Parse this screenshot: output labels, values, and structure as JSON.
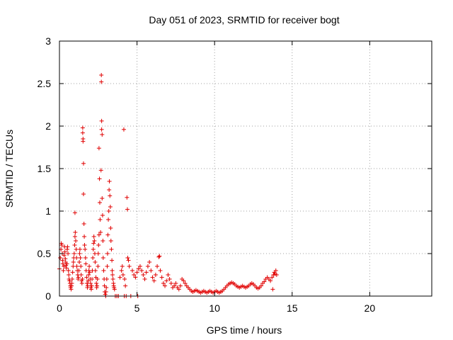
{
  "chart_data": {
    "type": "scatter",
    "title": "Day 051 of 2023, SRMTID for receiver bogt",
    "xlabel": "GPS time / hours",
    "ylabel": "SRMTID / TECUs",
    "xlim": [
      0,
      24
    ],
    "ylim": [
      0,
      3
    ],
    "xticks": [
      0,
      5,
      10,
      15,
      20
    ],
    "yticks": [
      0,
      0.5,
      1,
      1.5,
      2,
      2.5,
      3
    ],
    "xtick_labels": [
      "0",
      "5",
      "10",
      "15",
      "20"
    ],
    "ytick_labels": [
      "0",
      "0.5",
      "1",
      "1.5",
      "2",
      "2.5",
      "3"
    ],
    "grid": true,
    "marker": "+",
    "color": "#e00000",
    "series": [
      {
        "name": "SRMTID",
        "points": [
          [
            0.0,
            0.32
          ],
          [
            0.05,
            0.45
          ],
          [
            0.1,
            0.55
          ],
          [
            0.12,
            0.62
          ],
          [
            0.15,
            0.6
          ],
          [
            0.18,
            0.5
          ],
          [
            0.2,
            0.42
          ],
          [
            0.22,
            0.38
          ],
          [
            0.25,
            0.3
          ],
          [
            0.28,
            0.35
          ],
          [
            0.3,
            0.48
          ],
          [
            0.33,
            0.58
          ],
          [
            0.35,
            0.52
          ],
          [
            0.38,
            0.44
          ],
          [
            0.4,
            0.4
          ],
          [
            0.42,
            0.36
          ],
          [
            0.45,
            0.33
          ],
          [
            0.48,
            0.38
          ],
          [
            0.5,
            0.55
          ],
          [
            0.52,
            0.58
          ],
          [
            0.55,
            0.5
          ],
          [
            0.58,
            0.3
          ],
          [
            0.6,
            0.25
          ],
          [
            0.62,
            0.2
          ],
          [
            0.65,
            0.18
          ],
          [
            0.68,
            0.15
          ],
          [
            0.7,
            0.12
          ],
          [
            0.72,
            0.1
          ],
          [
            0.75,
            0.08
          ],
          [
            0.78,
            0.12
          ],
          [
            0.8,
            0.15
          ],
          [
            0.82,
            0.2
          ],
          [
            0.85,
            0.28
          ],
          [
            0.88,
            0.35
          ],
          [
            0.9,
            0.4
          ],
          [
            0.92,
            0.45
          ],
          [
            0.95,
            0.5
          ],
          [
            0.98,
            0.6
          ],
          [
            1.0,
            0.7
          ],
          [
            1.02,
            0.75
          ],
          [
            1.05,
            0.65
          ],
          [
            1.08,
            0.55
          ],
          [
            1.1,
            0.45
          ],
          [
            1.0,
            0.98
          ],
          [
            1.12,
            0.35
          ],
          [
            1.15,
            0.3
          ],
          [
            1.18,
            0.25
          ],
          [
            1.2,
            0.2
          ],
          [
            1.22,
            0.22
          ],
          [
            1.25,
            0.3
          ],
          [
            1.28,
            0.4
          ],
          [
            1.3,
            0.5
          ],
          [
            1.32,
            0.55
          ],
          [
            1.35,
            0.45
          ],
          [
            1.38,
            0.35
          ],
          [
            1.4,
            0.25
          ],
          [
            1.42,
            0.18
          ],
          [
            1.45,
            0.15
          ],
          [
            1.48,
            0.2
          ],
          [
            1.5,
            1.98
          ],
          [
            1.5,
            1.92
          ],
          [
            1.52,
            1.85
          ],
          [
            1.52,
            1.82
          ],
          [
            1.55,
            1.56
          ],
          [
            1.55,
            1.2
          ],
          [
            1.58,
            0.85
          ],
          [
            1.6,
            0.7
          ],
          [
            1.62,
            0.6
          ],
          [
            1.65,
            0.55
          ],
          [
            1.68,
            0.45
          ],
          [
            1.7,
            0.38
          ],
          [
            1.72,
            0.3
          ],
          [
            1.75,
            0.22
          ],
          [
            1.78,
            0.15
          ],
          [
            1.8,
            0.1
          ],
          [
            1.82,
            0.12
          ],
          [
            1.85,
            0.18
          ],
          [
            1.88,
            0.25
          ],
          [
            1.9,
            0.3
          ],
          [
            1.92,
            0.35
          ],
          [
            1.95,
            0.28
          ],
          [
            1.98,
            0.2
          ],
          [
            2.0,
            0.15
          ],
          [
            2.02,
            0.1
          ],
          [
            2.05,
            0.08
          ],
          [
            2.08,
            0.12
          ],
          [
            2.1,
            0.2
          ],
          [
            2.12,
            0.3
          ],
          [
            2.15,
            0.45
          ],
          [
            2.18,
            0.55
          ],
          [
            2.2,
            0.62
          ],
          [
            2.22,
            0.7
          ],
          [
            2.25,
            0.65
          ],
          [
            2.28,
            0.5
          ],
          [
            2.3,
            0.4
          ],
          [
            2.32,
            0.3
          ],
          [
            2.35,
            0.22
          ],
          [
            2.38,
            0.15
          ],
          [
            2.4,
            0.1
          ],
          [
            2.42,
            0.12
          ],
          [
            2.45,
            0.2
          ],
          [
            2.48,
            0.35
          ],
          [
            2.5,
            0.5
          ],
          [
            2.52,
            0.6
          ],
          [
            2.55,
            0.72
          ],
          [
            2.55,
            1.74
          ],
          [
            2.58,
            1.38
          ],
          [
            2.6,
            1.1
          ],
          [
            2.62,
            0.9
          ],
          [
            2.65,
            0.75
          ],
          [
            2.68,
            1.48
          ],
          [
            2.7,
            2.6
          ],
          [
            2.7,
            2.52
          ],
          [
            2.72,
            2.06
          ],
          [
            2.72,
            1.96
          ],
          [
            2.75,
            1.9
          ],
          [
            2.75,
            1.15
          ],
          [
            2.78,
            0.95
          ],
          [
            2.8,
            0.65
          ],
          [
            2.82,
            0.45
          ],
          [
            2.85,
            0.3
          ],
          [
            2.88,
            0.2
          ],
          [
            2.9,
            0.12
          ],
          [
            2.92,
            0.05
          ],
          [
            2.95,
            0.02
          ],
          [
            2.98,
            0.0
          ],
          [
            3.0,
            0.05
          ],
          [
            3.02,
            0.1
          ],
          [
            3.05,
            0.2
          ],
          [
            3.08,
            0.35
          ],
          [
            3.1,
            0.5
          ],
          [
            3.12,
            0.72
          ],
          [
            3.15,
            0.9
          ],
          [
            3.18,
            1.0
          ],
          [
            3.2,
            1.25
          ],
          [
            3.22,
            1.35
          ],
          [
            3.25,
            1.18
          ],
          [
            3.28,
            1.05
          ],
          [
            3.3,
            0.8
          ],
          [
            3.32,
            0.65
          ],
          [
            3.35,
            0.55
          ],
          [
            3.38,
            0.42
          ],
          [
            3.4,
            0.3
          ],
          [
            3.42,
            0.25
          ],
          [
            3.45,
            0.2
          ],
          [
            3.48,
            0.15
          ],
          [
            3.5,
            0.12
          ],
          [
            3.52,
            0.1
          ],
          [
            3.55,
            0.08
          ],
          [
            3.6,
            0.0
          ],
          [
            3.7,
            0.0
          ],
          [
            3.8,
            0.0
          ],
          [
            3.9,
            0.22
          ],
          [
            4.0,
            0.3
          ],
          [
            4.05,
            0.35
          ],
          [
            4.1,
            0.25
          ],
          [
            4.15,
            1.96
          ],
          [
            4.18,
            0.0
          ],
          [
            4.2,
            0.2
          ],
          [
            4.25,
            0.12
          ],
          [
            4.3,
            0.0
          ],
          [
            4.35,
            1.16
          ],
          [
            4.38,
            1.02
          ],
          [
            4.4,
            0.45
          ],
          [
            4.45,
            0.42
          ],
          [
            4.5,
            0.35
          ],
          [
            4.6,
            0.0
          ],
          [
            4.7,
            0.3
          ],
          [
            4.8,
            0.25
          ],
          [
            4.9,
            0.22
          ],
          [
            5.0,
            0.28
          ],
          [
            5.05,
            0.0
          ],
          [
            5.1,
            0.32
          ],
          [
            5.2,
            0.35
          ],
          [
            5.3,
            0.3
          ],
          [
            5.4,
            0.25
          ],
          [
            5.5,
            0.2
          ],
          [
            5.6,
            0.28
          ],
          [
            5.7,
            0.35
          ],
          [
            5.8,
            0.4
          ],
          [
            5.9,
            0.3
          ],
          [
            6.0,
            0.22
          ],
          [
            6.1,
            0.18
          ],
          [
            6.2,
            0.25
          ],
          [
            6.3,
            0.35
          ],
          [
            6.4,
            0.46
          ],
          [
            6.45,
            0.47
          ],
          [
            6.5,
            0.3
          ],
          [
            6.6,
            0.22
          ],
          [
            6.7,
            0.15
          ],
          [
            6.8,
            0.12
          ],
          [
            6.9,
            0.18
          ],
          [
            7.0,
            0.25
          ],
          [
            7.1,
            0.2
          ],
          [
            7.2,
            0.15
          ],
          [
            7.3,
            0.1
          ],
          [
            7.4,
            0.12
          ],
          [
            7.5,
            0.15
          ],
          [
            7.6,
            0.1
          ],
          [
            7.7,
            0.08
          ],
          [
            7.8,
            0.12
          ],
          [
            7.9,
            0.2
          ],
          [
            8.0,
            0.18
          ],
          [
            8.1,
            0.15
          ],
          [
            8.2,
            0.12
          ],
          [
            8.3,
            0.1
          ],
          [
            8.4,
            0.08
          ],
          [
            8.5,
            0.06
          ],
          [
            8.6,
            0.05
          ],
          [
            8.7,
            0.06
          ],
          [
            8.8,
            0.07
          ],
          [
            8.9,
            0.06
          ],
          [
            9.0,
            0.05
          ],
          [
            9.1,
            0.04
          ],
          [
            9.2,
            0.05
          ],
          [
            9.3,
            0.06
          ],
          [
            9.4,
            0.05
          ],
          [
            9.5,
            0.04
          ],
          [
            9.6,
            0.05
          ],
          [
            9.7,
            0.06
          ],
          [
            9.8,
            0.05
          ],
          [
            9.9,
            0.04
          ],
          [
            10.0,
            0.05
          ],
          [
            10.1,
            0.06
          ],
          [
            10.2,
            0.05
          ],
          [
            10.3,
            0.04
          ],
          [
            10.4,
            0.05
          ],
          [
            10.5,
            0.06
          ],
          [
            10.6,
            0.08
          ],
          [
            10.7,
            0.1
          ],
          [
            10.8,
            0.12
          ],
          [
            10.9,
            0.14
          ],
          [
            11.0,
            0.15
          ],
          [
            11.1,
            0.16
          ],
          [
            11.2,
            0.15
          ],
          [
            11.3,
            0.14
          ],
          [
            11.4,
            0.12
          ],
          [
            11.5,
            0.11
          ],
          [
            11.6,
            0.1
          ],
          [
            11.7,
            0.11
          ],
          [
            11.8,
            0.12
          ],
          [
            11.9,
            0.11
          ],
          [
            12.0,
            0.1
          ],
          [
            12.1,
            0.11
          ],
          [
            12.2,
            0.12
          ],
          [
            12.3,
            0.14
          ],
          [
            12.4,
            0.15
          ],
          [
            12.5,
            0.14
          ],
          [
            12.6,
            0.12
          ],
          [
            12.7,
            0.1
          ],
          [
            12.8,
            0.09
          ],
          [
            12.9,
            0.1
          ],
          [
            13.0,
            0.12
          ],
          [
            13.1,
            0.15
          ],
          [
            13.2,
            0.17
          ],
          [
            13.3,
            0.2
          ],
          [
            13.4,
            0.22
          ],
          [
            13.5,
            0.2
          ],
          [
            13.6,
            0.18
          ],
          [
            13.7,
            0.22
          ],
          [
            13.75,
            0.08
          ],
          [
            13.8,
            0.25
          ],
          [
            13.85,
            0.28
          ],
          [
            13.9,
            0.26
          ],
          [
            13.95,
            0.3
          ],
          [
            14.0,
            0.25
          ]
        ]
      }
    ]
  }
}
